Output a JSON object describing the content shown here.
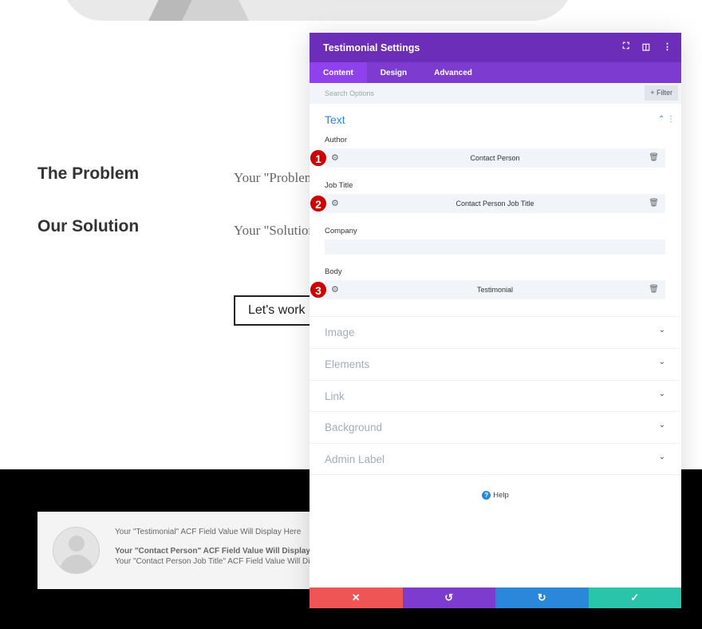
{
  "page": {
    "problem_heading": "The Problem",
    "problem_text": "Your \"Problem",
    "solution_heading": "Our Solution",
    "solution_text": "Your \"Solution",
    "cta_label": "Let's work"
  },
  "testimonial_preview": {
    "body": "Your \"Testimonial\" ACF Field Value Will Display Here",
    "author": "Your \"Contact Person\" ACF Field Value Will Display Here",
    "job_title": "Your \"Contact Person Job Title\" ACF Field Value Will Display Here"
  },
  "panel": {
    "title": "Testimonial Settings",
    "tabs": [
      {
        "label": "Content"
      },
      {
        "label": "Design"
      },
      {
        "label": "Advanced"
      }
    ],
    "search_placeholder": "Search Options",
    "filter_label": "Filter",
    "text_section": "Text",
    "fields": [
      {
        "label": "Author",
        "value": "Contact Person",
        "badge": "1"
      },
      {
        "label": "Job Title",
        "value": "Contact Person Job Title",
        "badge": "2"
      },
      {
        "label": "Company",
        "value": ""
      },
      {
        "label": "Body",
        "value": "Testimonial",
        "badge": "3"
      }
    ],
    "sections": [
      {
        "label": "Image"
      },
      {
        "label": "Elements"
      },
      {
        "label": "Link"
      },
      {
        "label": "Background"
      },
      {
        "label": "Admin Label"
      }
    ],
    "help_label": "Help",
    "footer_colors": {
      "discard": "#ef5555",
      "undo": "#7e3bd0",
      "redo": "#2b87da",
      "save": "#29c4a9"
    }
  },
  "colors": {
    "header": "#6c2eb9",
    "tabs": "#7e3bd0",
    "accent": "#2b87da"
  }
}
